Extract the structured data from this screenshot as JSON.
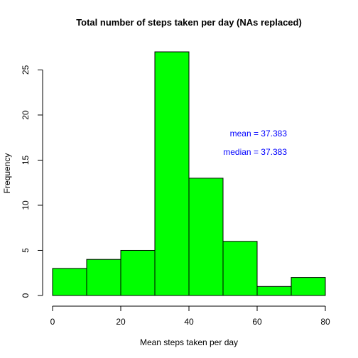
{
  "chart_data": {
    "type": "bar",
    "title": "Total number of steps taken per day (NAs replaced)",
    "xlabel": "Mean steps taken per day",
    "ylabel": "Frequency",
    "bins": [
      [
        0,
        10
      ],
      [
        10,
        20
      ],
      [
        20,
        30
      ],
      [
        30,
        40
      ],
      [
        40,
        50
      ],
      [
        50,
        60
      ],
      [
        60,
        70
      ],
      [
        70,
        80
      ]
    ],
    "values": [
      3,
      4,
      5,
      27,
      13,
      6,
      1,
      2
    ],
    "xlim": [
      0,
      80
    ],
    "ylim": [
      0,
      27
    ],
    "x_ticks": [
      0,
      20,
      40,
      60,
      80
    ],
    "y_ticks": [
      0,
      5,
      10,
      15,
      20,
      25
    ],
    "bar_color": "#00ff00",
    "annotations": {
      "mean": "mean = 37.383",
      "median": "median = 37.383",
      "color": "#0000ff"
    },
    "grid": false
  }
}
